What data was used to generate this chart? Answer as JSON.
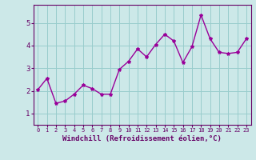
{
  "x": [
    0,
    1,
    2,
    3,
    4,
    5,
    6,
    7,
    8,
    9,
    10,
    11,
    12,
    13,
    14,
    15,
    16,
    17,
    18,
    19,
    20,
    21,
    22,
    23
  ],
  "y": [
    2.05,
    2.55,
    1.45,
    1.55,
    1.85,
    2.25,
    2.1,
    1.85,
    1.85,
    2.95,
    3.3,
    3.85,
    3.5,
    4.05,
    4.5,
    4.2,
    3.25,
    3.95,
    5.35,
    4.3,
    3.7,
    3.65,
    3.7,
    4.3
  ],
  "line_color": "#990099",
  "marker": "*",
  "marker_size": 3,
  "xlabel": "Windchill (Refroidissement éolien,°C)",
  "xlabel_fontsize": 6.5,
  "xlim": [
    -0.5,
    23.5
  ],
  "ylim": [
    0.5,
    5.8
  ],
  "yticks": [
    1,
    2,
    3,
    4,
    5
  ],
  "xticks": [
    0,
    1,
    2,
    3,
    4,
    5,
    6,
    7,
    8,
    9,
    10,
    11,
    12,
    13,
    14,
    15,
    16,
    17,
    18,
    19,
    20,
    21,
    22,
    23
  ],
  "xtick_fontsize": 5.0,
  "ytick_fontsize": 6.5,
  "bg_color": "#cce8e8",
  "grid_color": "#99cccc",
  "axis_color": "#660066",
  "tick_color": "#660066",
  "line_width": 1.0
}
